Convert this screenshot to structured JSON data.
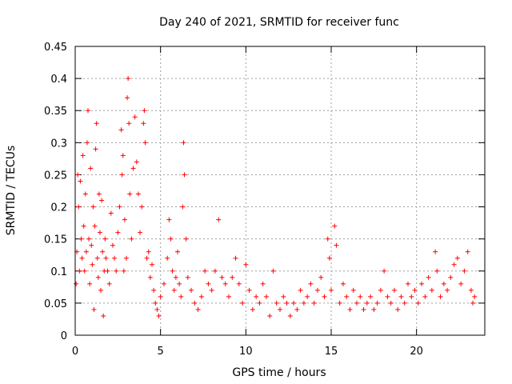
{
  "chart_data": {
    "type": "scatter",
    "title": "Day 240 of 2021, SRMTID for receiver func",
    "xlabel": "GPS time / hours",
    "ylabel": "SRMTID / TECUs",
    "xlim": [
      0,
      24
    ],
    "ylim": [
      0,
      0.45
    ],
    "xticks": [
      0,
      5,
      10,
      15,
      20
    ],
    "xtick_labels": [
      "0",
      "5",
      "10",
      "15",
      "20"
    ],
    "yticks": [
      0,
      0.05,
      0.1,
      0.15,
      0.2,
      0.25,
      0.3,
      0.35,
      0.4,
      0.45
    ],
    "ytick_labels": [
      "0",
      "0.05",
      "0.1",
      "0.15",
      "0.2",
      "0.25",
      "0.3",
      "0.35",
      "0.4",
      "0.45"
    ],
    "grid": true,
    "marker": "plus",
    "color": "#ff0000",
    "series": [
      {
        "name": "SRMTID",
        "points": [
          [
            0.05,
            0.08
          ],
          [
            0.1,
            0.13
          ],
          [
            0.15,
            0.25
          ],
          [
            0.2,
            0.2
          ],
          [
            0.25,
            0.1
          ],
          [
            0.3,
            0.24
          ],
          [
            0.35,
            0.15
          ],
          [
            0.4,
            0.12
          ],
          [
            0.45,
            0.28
          ],
          [
            0.5,
            0.17
          ],
          [
            0.55,
            0.1
          ],
          [
            0.6,
            0.22
          ],
          [
            0.65,
            0.13
          ],
          [
            0.7,
            0.3
          ],
          [
            0.75,
            0.35
          ],
          [
            0.8,
            0.15
          ],
          [
            0.85,
            0.08
          ],
          [
            0.9,
            0.26
          ],
          [
            0.95,
            0.14
          ],
          [
            1.0,
            0.11
          ],
          [
            1.05,
            0.2
          ],
          [
            1.1,
            0.04
          ],
          [
            1.15,
            0.17
          ],
          [
            1.2,
            0.29
          ],
          [
            1.25,
            0.33
          ],
          [
            1.3,
            0.12
          ],
          [
            1.35,
            0.09
          ],
          [
            1.4,
            0.22
          ],
          [
            1.45,
            0.16
          ],
          [
            1.5,
            0.07
          ],
          [
            1.55,
            0.21
          ],
          [
            1.6,
            0.13
          ],
          [
            1.65,
            0.03
          ],
          [
            1.7,
            0.1
          ],
          [
            1.75,
            0.15
          ],
          [
            1.8,
            0.12
          ],
          [
            1.9,
            0.1
          ],
          [
            2.0,
            0.08
          ],
          [
            2.1,
            0.19
          ],
          [
            2.2,
            0.14
          ],
          [
            2.3,
            0.12
          ],
          [
            2.4,
            0.1
          ],
          [
            2.5,
            0.16
          ],
          [
            2.6,
            0.2
          ],
          [
            2.7,
            0.32
          ],
          [
            2.75,
            0.25
          ],
          [
            2.8,
            0.28
          ],
          [
            2.85,
            0.1
          ],
          [
            2.9,
            0.18
          ],
          [
            3.0,
            0.12
          ],
          [
            3.05,
            0.37
          ],
          [
            3.1,
            0.4
          ],
          [
            3.15,
            0.33
          ],
          [
            3.2,
            0.22
          ],
          [
            3.3,
            0.15
          ],
          [
            3.4,
            0.26
          ],
          [
            3.5,
            0.34
          ],
          [
            3.6,
            0.27
          ],
          [
            3.7,
            0.22
          ],
          [
            3.8,
            0.16
          ],
          [
            3.9,
            0.2
          ],
          [
            4.0,
            0.33
          ],
          [
            4.05,
            0.35
          ],
          [
            4.1,
            0.3
          ],
          [
            4.2,
            0.12
          ],
          [
            4.3,
            0.13
          ],
          [
            4.4,
            0.09
          ],
          [
            4.5,
            0.11
          ],
          [
            4.6,
            0.07
          ],
          [
            4.7,
            0.05
          ],
          [
            4.8,
            0.04
          ],
          [
            4.9,
            0.03
          ],
          [
            5.0,
            0.06
          ],
          [
            5.2,
            0.08
          ],
          [
            5.4,
            0.12
          ],
          [
            5.5,
            0.18
          ],
          [
            5.6,
            0.15
          ],
          [
            5.7,
            0.1
          ],
          [
            5.8,
            0.07
          ],
          [
            5.9,
            0.09
          ],
          [
            6.0,
            0.13
          ],
          [
            6.1,
            0.08
          ],
          [
            6.2,
            0.06
          ],
          [
            6.3,
            0.2
          ],
          [
            6.35,
            0.3
          ],
          [
            6.4,
            0.25
          ],
          [
            6.5,
            0.15
          ],
          [
            6.6,
            0.09
          ],
          [
            6.8,
            0.07
          ],
          [
            7.0,
            0.05
          ],
          [
            7.2,
            0.04
          ],
          [
            7.4,
            0.06
          ],
          [
            7.6,
            0.1
          ],
          [
            7.8,
            0.08
          ],
          [
            8.0,
            0.07
          ],
          [
            8.2,
            0.1
          ],
          [
            8.4,
            0.18
          ],
          [
            8.6,
            0.09
          ],
          [
            8.8,
            0.08
          ],
          [
            9.0,
            0.06
          ],
          [
            9.2,
            0.09
          ],
          [
            9.4,
            0.12
          ],
          [
            9.6,
            0.08
          ],
          [
            9.8,
            0.05
          ],
          [
            10.0,
            0.11
          ],
          [
            10.2,
            0.07
          ],
          [
            10.4,
            0.04
          ],
          [
            10.6,
            0.06
          ],
          [
            10.8,
            0.05
          ],
          [
            11.0,
            0.08
          ],
          [
            11.2,
            0.06
          ],
          [
            11.4,
            0.03
          ],
          [
            11.6,
            0.1
          ],
          [
            11.8,
            0.05
          ],
          [
            12.0,
            0.04
          ],
          [
            12.2,
            0.06
          ],
          [
            12.4,
            0.05
          ],
          [
            12.6,
            0.03
          ],
          [
            12.8,
            0.05
          ],
          [
            13.0,
            0.04
          ],
          [
            13.2,
            0.07
          ],
          [
            13.4,
            0.05
          ],
          [
            13.6,
            0.06
          ],
          [
            13.8,
            0.08
          ],
          [
            14.0,
            0.05
          ],
          [
            14.2,
            0.07
          ],
          [
            14.4,
            0.09
          ],
          [
            14.6,
            0.06
          ],
          [
            14.8,
            0.15
          ],
          [
            14.9,
            0.12
          ],
          [
            15.0,
            0.07
          ],
          [
            15.2,
            0.17
          ],
          [
            15.3,
            0.14
          ],
          [
            15.5,
            0.05
          ],
          [
            15.7,
            0.08
          ],
          [
            15.9,
            0.06
          ],
          [
            16.1,
            0.04
          ],
          [
            16.3,
            0.07
          ],
          [
            16.5,
            0.05
          ],
          [
            16.7,
            0.06
          ],
          [
            16.9,
            0.04
          ],
          [
            17.1,
            0.05
          ],
          [
            17.3,
            0.06
          ],
          [
            17.5,
            0.04
          ],
          [
            17.7,
            0.05
          ],
          [
            17.9,
            0.07
          ],
          [
            18.1,
            0.1
          ],
          [
            18.3,
            0.06
          ],
          [
            18.5,
            0.05
          ],
          [
            18.7,
            0.07
          ],
          [
            18.9,
            0.04
          ],
          [
            19.1,
            0.06
          ],
          [
            19.3,
            0.05
          ],
          [
            19.5,
            0.08
          ],
          [
            19.7,
            0.06
          ],
          [
            19.9,
            0.07
          ],
          [
            20.1,
            0.05
          ],
          [
            20.3,
            0.08
          ],
          [
            20.5,
            0.06
          ],
          [
            20.7,
            0.09
          ],
          [
            20.9,
            0.07
          ],
          [
            21.1,
            0.13
          ],
          [
            21.2,
            0.1
          ],
          [
            21.4,
            0.06
          ],
          [
            21.6,
            0.08
          ],
          [
            21.8,
            0.07
          ],
          [
            22.0,
            0.09
          ],
          [
            22.2,
            0.11
          ],
          [
            22.4,
            0.12
          ],
          [
            22.6,
            0.08
          ],
          [
            22.8,
            0.1
          ],
          [
            23.0,
            0.13
          ],
          [
            23.2,
            0.07
          ],
          [
            23.3,
            0.05
          ],
          [
            23.4,
            0.06
          ]
        ]
      }
    ]
  }
}
